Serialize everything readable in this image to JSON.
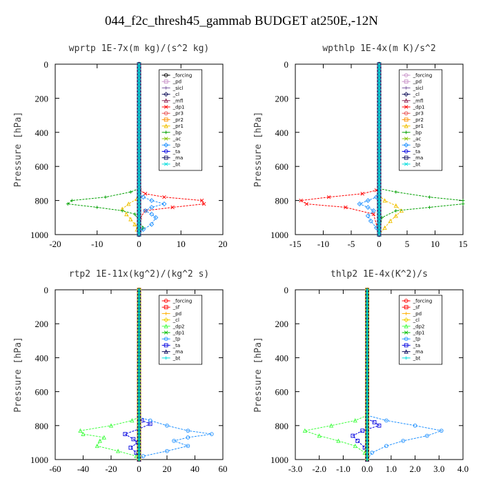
{
  "figure_title": "044_f2c_thresh45_gammab  BUDGET at250E,-12N",
  "chart_data": [
    {
      "type": "line",
      "title": "wprtp  1E-7x(m kg)/(s^2 kg)",
      "ylabel": "Pressure [hPa]",
      "xlim": [
        -20,
        20
      ],
      "ylim": [
        1000,
        0
      ],
      "xticks": [
        "-20",
        "-10",
        "0",
        "10",
        "20"
      ],
      "yticks": [
        "0",
        "200",
        "400",
        "600",
        "800",
        "1000"
      ],
      "legend": [
        "_forcing",
        "_pd",
        "_sicl",
        "_cl",
        "_mfl",
        "_dp1",
        "_pr3",
        "_pr2",
        "_pr1",
        "_bp",
        "_ac",
        "_tp",
        "_ta",
        "_ma",
        "_bt"
      ],
      "series": [
        {
          "name": "_forcing",
          "color": "#000000",
          "x": [
            0,
            0
          ],
          "y": [
            0,
            1000
          ]
        },
        {
          "name": "_pd",
          "color": "#c890c8",
          "x": [
            0,
            0
          ],
          "y": [
            0,
            1000
          ]
        },
        {
          "name": "_sicl",
          "color": "#7a5aa0",
          "x": [
            0,
            0
          ],
          "y": [
            0,
            1000
          ]
        },
        {
          "name": "_cl",
          "color": "#1a1a60",
          "x": [
            0,
            0
          ],
          "y": [
            0,
            1000
          ]
        },
        {
          "name": "_mfl",
          "color": "#8a2050",
          "x": [
            0,
            0
          ],
          "y": [
            0,
            1000
          ]
        },
        {
          "name": "_dp1",
          "color": "#ff0000",
          "x": [
            0,
            0.2,
            1.5,
            6,
            15,
            15.5,
            8,
            1.5,
            0.3,
            0
          ],
          "y": [
            720,
            740,
            760,
            780,
            800,
            820,
            840,
            860,
            900,
            1000
          ]
        },
        {
          "name": "_pr3",
          "color": "#e85050",
          "x": [
            0,
            0
          ],
          "y": [
            0,
            1000
          ]
        },
        {
          "name": "_pr2",
          "color": "#ff9000",
          "x": [
            0,
            0
          ],
          "y": [
            0,
            1000
          ]
        },
        {
          "name": "_pr1",
          "color": "#f0c000",
          "x": [
            0,
            -0.5,
            -2.5,
            -4,
            -3,
            -2,
            -1,
            -0.5,
            0
          ],
          "y": [
            760,
            790,
            820,
            850,
            880,
            910,
            940,
            970,
            1000
          ]
        },
        {
          "name": "_bp",
          "color": "#00a000",
          "x": [
            0,
            -2,
            -8,
            -16,
            -17,
            -10,
            -4,
            -1,
            0,
            1,
            0
          ],
          "y": [
            730,
            750,
            780,
            800,
            820,
            840,
            860,
            880,
            920,
            960,
            1000
          ]
        },
        {
          "name": "_ac",
          "color": "#80c000",
          "x": [
            0,
            0
          ],
          "y": [
            0,
            1000
          ]
        },
        {
          "name": "_tp",
          "color": "#1e90ff",
          "x": [
            0,
            1,
            3,
            6,
            3,
            1.5,
            3,
            4,
            3,
            1,
            0
          ],
          "y": [
            760,
            780,
            800,
            820,
            840,
            860,
            880,
            900,
            940,
            970,
            1000
          ]
        },
        {
          "name": "_ta",
          "color": "#0000e0",
          "x": [
            0,
            0
          ],
          "y": [
            0,
            1000
          ]
        },
        {
          "name": "_ma",
          "color": "#101060",
          "x": [
            0,
            0
          ],
          "y": [
            0,
            1000
          ]
        },
        {
          "name": "_bt",
          "color": "#00dddd",
          "x": [
            0,
            0
          ],
          "y": [
            0,
            1000
          ]
        }
      ]
    },
    {
      "type": "line",
      "title": "wpthlp  1E-4x(m K)/s^2",
      "ylabel": "Pressure [hPa]",
      "xlim": [
        -15,
        15
      ],
      "ylim": [
        1000,
        0
      ],
      "xticks": [
        "-15",
        "-10",
        "-5",
        "0",
        "5",
        "10",
        "15"
      ],
      "yticks": [
        "0",
        "200",
        "400",
        "600",
        "800",
        "1000"
      ],
      "legend": [
        "_forcing",
        "_pd",
        "_sicl",
        "_cl",
        "_mfl",
        "_dp1",
        "_pr3",
        "_pr2",
        "_pr1",
        "_bp",
        "_ac",
        "_tp",
        "_ta",
        "_ma",
        "_bt"
      ],
      "series": [
        {
          "name": "_forcing",
          "color": "#c890c8",
          "x": [
            0,
            0
          ],
          "y": [
            0,
            1000
          ]
        },
        {
          "name": "_pd",
          "color": "#c890c8",
          "x": [
            0,
            0
          ],
          "y": [
            0,
            1000
          ]
        },
        {
          "name": "_sicl",
          "color": "#7a5aa0",
          "x": [
            0,
            0
          ],
          "y": [
            0,
            1000
          ]
        },
        {
          "name": "_cl",
          "color": "#1a1a60",
          "x": [
            0,
            0
          ],
          "y": [
            0,
            1000
          ]
        },
        {
          "name": "_mfl",
          "color": "#8a2050",
          "x": [
            0,
            0
          ],
          "y": [
            0,
            1000
          ]
        },
        {
          "name": "_dp1",
          "color": "#ff0000",
          "x": [
            0,
            -0.5,
            -3,
            -9,
            -14,
            -13,
            -6,
            -1,
            0
          ],
          "y": [
            720,
            740,
            760,
            780,
            800,
            820,
            840,
            880,
            1000
          ]
        },
        {
          "name": "_pr3",
          "color": "#e85050",
          "x": [
            0,
            0
          ],
          "y": [
            0,
            1000
          ]
        },
        {
          "name": "_pr2",
          "color": "#ff9000",
          "x": [
            0,
            0
          ],
          "y": [
            0,
            1000
          ]
        },
        {
          "name": "_pr1",
          "color": "#f0c000",
          "x": [
            0,
            1,
            3,
            4,
            3,
            2,
            1,
            0
          ],
          "y": [
            770,
            800,
            830,
            860,
            890,
            920,
            960,
            1000
          ]
        },
        {
          "name": "_bp",
          "color": "#00a000",
          "x": [
            0,
            3,
            9,
            15,
            15,
            9,
            3,
            0.5,
            0
          ],
          "y": [
            730,
            750,
            780,
            800,
            820,
            840,
            860,
            900,
            1000
          ]
        },
        {
          "name": "_ac",
          "color": "#80c000",
          "x": [
            0,
            0
          ],
          "y": [
            0,
            1000
          ]
        },
        {
          "name": "_tp",
          "color": "#1e90ff",
          "x": [
            0,
            -0.5,
            -2,
            -3.5,
            -2,
            -1,
            -2,
            -1.5,
            -0.5,
            0
          ],
          "y": [
            760,
            780,
            800,
            820,
            840,
            860,
            890,
            920,
            960,
            1000
          ]
        },
        {
          "name": "_ta",
          "color": "#0000e0",
          "x": [
            0,
            0
          ],
          "y": [
            0,
            1000
          ]
        },
        {
          "name": "_ma",
          "color": "#101060",
          "x": [
            0,
            0
          ],
          "y": [
            0,
            1000
          ]
        },
        {
          "name": "_bt",
          "color": "#00dddd",
          "x": [
            0,
            0
          ],
          "y": [
            0,
            1000
          ]
        }
      ]
    },
    {
      "type": "line",
      "title": "rtp2  1E-11x(kg^2)/(kg^2 s)",
      "ylabel": "Pressure [hPa]",
      "xlim": [
        -60,
        60
      ],
      "ylim": [
        1000,
        0
      ],
      "xticks": [
        "-60",
        "-40",
        "-20",
        "0",
        "20",
        "40",
        "60"
      ],
      "yticks": [
        "0",
        "200",
        "400",
        "600",
        "800",
        "1000"
      ],
      "legend": [
        "_forcing",
        "_sf",
        "_pd",
        "_cl",
        "_dp2",
        "_dp1",
        "_tp",
        "_ta",
        "_ma",
        "_bt"
      ],
      "series": [
        {
          "name": "_forcing",
          "color": "#ff0000",
          "x": [
            0,
            0
          ],
          "y": [
            0,
            1000
          ]
        },
        {
          "name": "_sf",
          "color": "#ff0000",
          "x": [
            0,
            0
          ],
          "y": [
            0,
            1000
          ]
        },
        {
          "name": "_pd",
          "color": "#ffb000",
          "x": [
            0,
            0
          ],
          "y": [
            0,
            1000
          ]
        },
        {
          "name": "_cl",
          "color": "#f0d000",
          "x": [
            0,
            0
          ],
          "y": [
            0,
            1000
          ]
        },
        {
          "name": "_dp2",
          "color": "#40ff40",
          "x": [
            0,
            -5,
            -20,
            -42,
            -40,
            -25,
            -28,
            -30,
            -15,
            -2,
            0
          ],
          "y": [
            750,
            770,
            800,
            830,
            850,
            870,
            890,
            920,
            950,
            980,
            1000
          ]
        },
        {
          "name": "_dp1",
          "color": "#00c000",
          "x": [
            0,
            0
          ],
          "y": [
            0,
            1000
          ]
        },
        {
          "name": "_tp",
          "color": "#1e90ff",
          "x": [
            0,
            8,
            20,
            35,
            52,
            35,
            25,
            35,
            20,
            3,
            0
          ],
          "y": [
            750,
            770,
            800,
            830,
            850,
            870,
            890,
            920,
            950,
            980,
            1000
          ]
        },
        {
          "name": "_ta",
          "color": "#0000e0",
          "x": [
            0,
            2,
            8,
            0,
            -10,
            -4,
            -1,
            -6,
            -2,
            0
          ],
          "y": [
            750,
            770,
            790,
            820,
            850,
            880,
            900,
            930,
            960,
            1000
          ]
        },
        {
          "name": "_ma",
          "color": "#101060",
          "x": [
            0,
            0
          ],
          "y": [
            0,
            1000
          ]
        },
        {
          "name": "_bt",
          "color": "#00dddd",
          "x": [
            0,
            0
          ],
          "y": [
            0,
            1000
          ]
        }
      ]
    },
    {
      "type": "line",
      "title": "thlp2  1E-4x(K^2)/s",
      "ylabel": "Pressure [hPa]",
      "xlim": [
        -3,
        4
      ],
      "ylim": [
        1000,
        0
      ],
      "xticks": [
        "-3.0",
        "-2.0",
        "-1.0",
        "0.0",
        "1.0",
        "2.0",
        "3.0",
        "4.0"
      ],
      "yticks": [
        "0",
        "200",
        "400",
        "600",
        "800",
        "1000"
      ],
      "legend": [
        "_forcing",
        "_sf",
        "_pd",
        "_cl",
        "_dp2",
        "_dp1",
        "_tp",
        "_ta",
        "_ma",
        "_bt"
      ],
      "series": [
        {
          "name": "_forcing",
          "color": "#ff0000",
          "x": [
            0,
            0
          ],
          "y": [
            0,
            1000
          ]
        },
        {
          "name": "_sf",
          "color": "#ff0000",
          "x": [
            0,
            0
          ],
          "y": [
            0,
            1000
          ]
        },
        {
          "name": "_pd",
          "color": "#ffb000",
          "x": [
            0,
            0
          ],
          "y": [
            0,
            1000
          ]
        },
        {
          "name": "_cl",
          "color": "#f0d000",
          "x": [
            0,
            0
          ],
          "y": [
            0,
            1000
          ]
        },
        {
          "name": "_dp2",
          "color": "#40ff40",
          "x": [
            0,
            -0.5,
            -1.5,
            -2.6,
            -2.0,
            -1.2,
            -0.5,
            -0.1,
            0
          ],
          "y": [
            740,
            770,
            800,
            830,
            860,
            890,
            920,
            960,
            1000
          ]
        },
        {
          "name": "_dp1",
          "color": "#00c000",
          "x": [
            0,
            0
          ],
          "y": [
            0,
            1000
          ]
        },
        {
          "name": "_tp",
          "color": "#1e90ff",
          "x": [
            0,
            0.8,
            2,
            3.1,
            2.5,
            1.5,
            0.8,
            0.2,
            0
          ],
          "y": [
            740,
            770,
            800,
            830,
            860,
            890,
            920,
            960,
            1000
          ]
        },
        {
          "name": "_ta",
          "color": "#0000e0",
          "x": [
            0,
            0.3,
            0.5,
            -0.2,
            -0.6,
            -0.4,
            -0.1,
            0
          ],
          "y": [
            760,
            780,
            800,
            830,
            860,
            890,
            930,
            1000
          ]
        },
        {
          "name": "_ma",
          "color": "#101060",
          "x": [
            0,
            0
          ],
          "y": [
            0,
            1000
          ]
        },
        {
          "name": "_bt",
          "color": "#00dddd",
          "x": [
            0,
            0
          ],
          "y": [
            0,
            1000
          ]
        }
      ]
    }
  ]
}
